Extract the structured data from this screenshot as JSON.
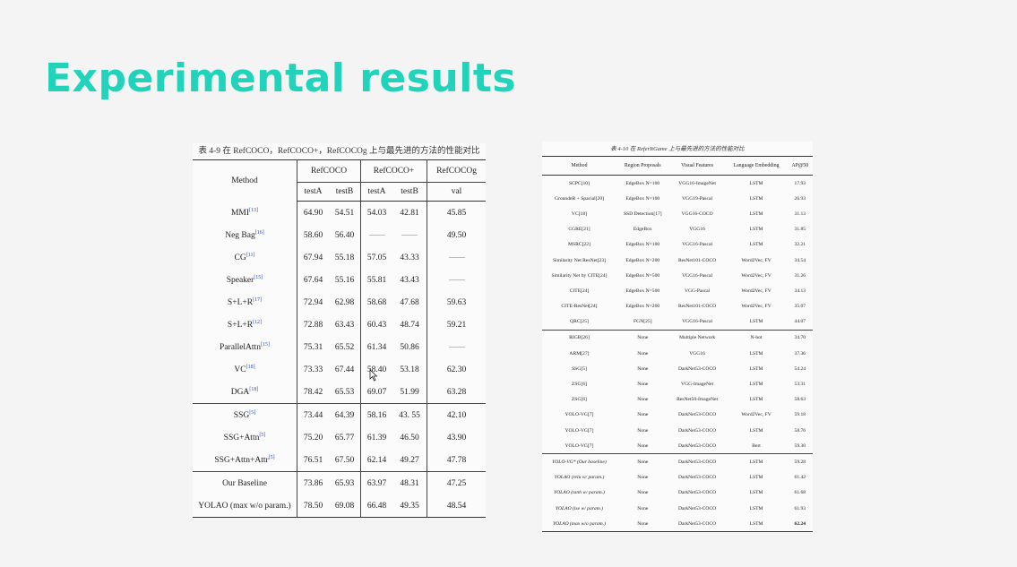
{
  "slide_title": "Experimental results",
  "left_table": {
    "caption": "表 4-9 在 RefCOCO，RefCOCO+，RefCOCOg 上与最先进的方法的性能对比",
    "method_header": "Method",
    "groups": [
      "RefCOCO",
      "RefCOCO+",
      "RefCOCOg"
    ],
    "subheaders": [
      "testA",
      "testB",
      "testA",
      "testB",
      "val"
    ],
    "rows": [
      {
        "method": "MMI",
        "ref": "[13]",
        "v": [
          "64.90",
          "54.51",
          "54.03",
          "42.81",
          "45.85"
        ]
      },
      {
        "method": "Neg Bag",
        "ref": "[16]",
        "v": [
          "58.60",
          "56.40",
          "",
          "",
          "49.50"
        ]
      },
      {
        "method": "CG",
        "ref": "[11]",
        "v": [
          "67.94",
          "55.18",
          "57.05",
          "43.33",
          ""
        ]
      },
      {
        "method": "Speaker",
        "ref": "[15]",
        "v": [
          "67.64",
          "55.16",
          "55.81",
          "43.43",
          ""
        ]
      },
      {
        "method": "S+L+R",
        "ref": "[17]",
        "v": [
          "72.94",
          "62.98",
          "58.68",
          "47.68",
          "59.63"
        ]
      },
      {
        "method": "S+L+R",
        "ref": "[12]",
        "v": [
          "72.88",
          "63.43",
          "60.43",
          "48.74",
          "59.21"
        ]
      },
      {
        "method": "ParallelAttn",
        "ref": "[15]",
        "v": [
          "75.31",
          "65.52",
          "61.34",
          "50.86",
          ""
        ]
      },
      {
        "method": "VC",
        "ref": "[18]",
        "v": [
          "73.33",
          "67.44",
          "58.40",
          "53.18",
          "62.30"
        ]
      },
      {
        "method": "DGA",
        "ref": "[18]",
        "v": [
          "78.42",
          "65.53",
          "69.07",
          "51.99",
          "63.28"
        ]
      },
      {
        "method": "SSG",
        "ref": "[5]",
        "v": [
          "73.44",
          "64.39",
          "58.16",
          "43. 55",
          "42.10"
        ]
      },
      {
        "method": "SSG+Attn",
        "ref": "[5]",
        "v": [
          "75.20",
          "65.77",
          "61.39",
          "46.50",
          "43.90"
        ]
      },
      {
        "method": "SSG+Attn+Attr",
        "ref": "[5]",
        "v": [
          "76.51",
          "67.50",
          "62.14",
          "49.27",
          "47.78"
        ]
      },
      {
        "method": "Our Baseline",
        "ref": "",
        "v": [
          "73.86",
          "65.93",
          "63.97",
          "48.31",
          "47.25"
        ]
      },
      {
        "method": "YOLAO (max w/o param.)",
        "ref": "",
        "v": [
          "78.50",
          "69.08",
          "66.48",
          "49.35",
          "48.54"
        ]
      }
    ]
  },
  "right_table": {
    "caption": "表 4-10 在 ReferItGame 上与最先进的方法的性能对比",
    "headers": [
      "Method",
      "Region Proposals",
      "Visual Features",
      "Language Embedding",
      "AP@50"
    ],
    "rows": [
      [
        "SCPC[10]",
        "EdgeBox N=100",
        "VGG16-ImageNet",
        "LSTM",
        "17.93"
      ],
      [
        "GroundeR + Spacial[20]",
        "EdgeBox N=100",
        "VGG19-Pascal",
        "LSTM",
        "26.93"
      ],
      [
        "VC[18]",
        "SSD Detection[17]",
        "VGG16-COCO",
        "LSTM",
        "31.13"
      ],
      [
        "CGRE[21]",
        "EdgeBox",
        "VGG16",
        "LSTM",
        "31.85"
      ],
      [
        "MSRC[22]",
        "EdgeBox N=100",
        "VGG16-Pascal",
        "LSTM",
        "32.21"
      ],
      [
        "Similarity Net ResNet[23]",
        "EdgeBox N=200",
        "ResNet101-COCO",
        "Word2Vec, FV",
        "34.54"
      ],
      [
        "Similarity Net by CITE[24]",
        "EdgeBox N=500",
        "VGG16-Pascal",
        "Word2Vec, FV",
        "31.26"
      ],
      [
        "CITE[24]",
        "EdgeBox N=500",
        "VGG-Pascal",
        "Word2Vec, FV",
        "34.13"
      ],
      [
        "CITE-ResNet[24]",
        "EdgeBox N=200",
        "ResNet101-COCO",
        "Word2Vec, FV",
        "35.07"
      ],
      [
        "QRC[25]",
        "FGN[25]",
        "VGG16-Pascal",
        "LSTM",
        "44.07"
      ],
      [
        "RIGB[26]",
        "None",
        "Multiple Network",
        "N-hot",
        "34.70"
      ],
      [
        "ARM[27]",
        "None",
        "VGG16",
        "LSTM",
        "37.36"
      ],
      [
        "SSG[5]",
        "None",
        "DarkNet53-COCO",
        "LSTM",
        "54.24"
      ],
      [
        "ZSG[6]",
        "None",
        "VGG-ImageNet",
        "LSTM",
        "53.31"
      ],
      [
        "ZSG[6]",
        "None",
        "ResNet50-ImageNet",
        "LSTM",
        "58.63"
      ],
      [
        "YOLO-VG[7]",
        "None",
        "DarkNet53-COCO",
        "Word2Vec, FV",
        "59.18"
      ],
      [
        "YOLO-VG[7]",
        "None",
        "DarkNet53-COCO",
        "LSTM",
        "58.76"
      ],
      [
        "YOLO-VG[7]",
        "None",
        "DarkNet53-COCO",
        "Bert",
        "59.30"
      ],
      [
        "YOLO-VG* (Our baseline)",
        "None",
        "DarkNet53-COCO",
        "LSTM",
        "59.28"
      ],
      [
        "YOLAO (relu w/ param.)",
        "None",
        "DarkNet53-COCO",
        "LSTM",
        "61.42"
      ],
      [
        "YOLAO (tanh w/ param.)",
        "None",
        "DarkNet53-COCO",
        "LSTM",
        "61.68"
      ],
      [
        "YOLAO (lse w/ param.)",
        "None",
        "DarkNet53-COCO",
        "LSTM",
        "61.93"
      ],
      [
        "YOLAO (max w/o param.)",
        "None",
        "DarkNet53-COCO",
        "LSTM",
        "62.24"
      ]
    ]
  }
}
